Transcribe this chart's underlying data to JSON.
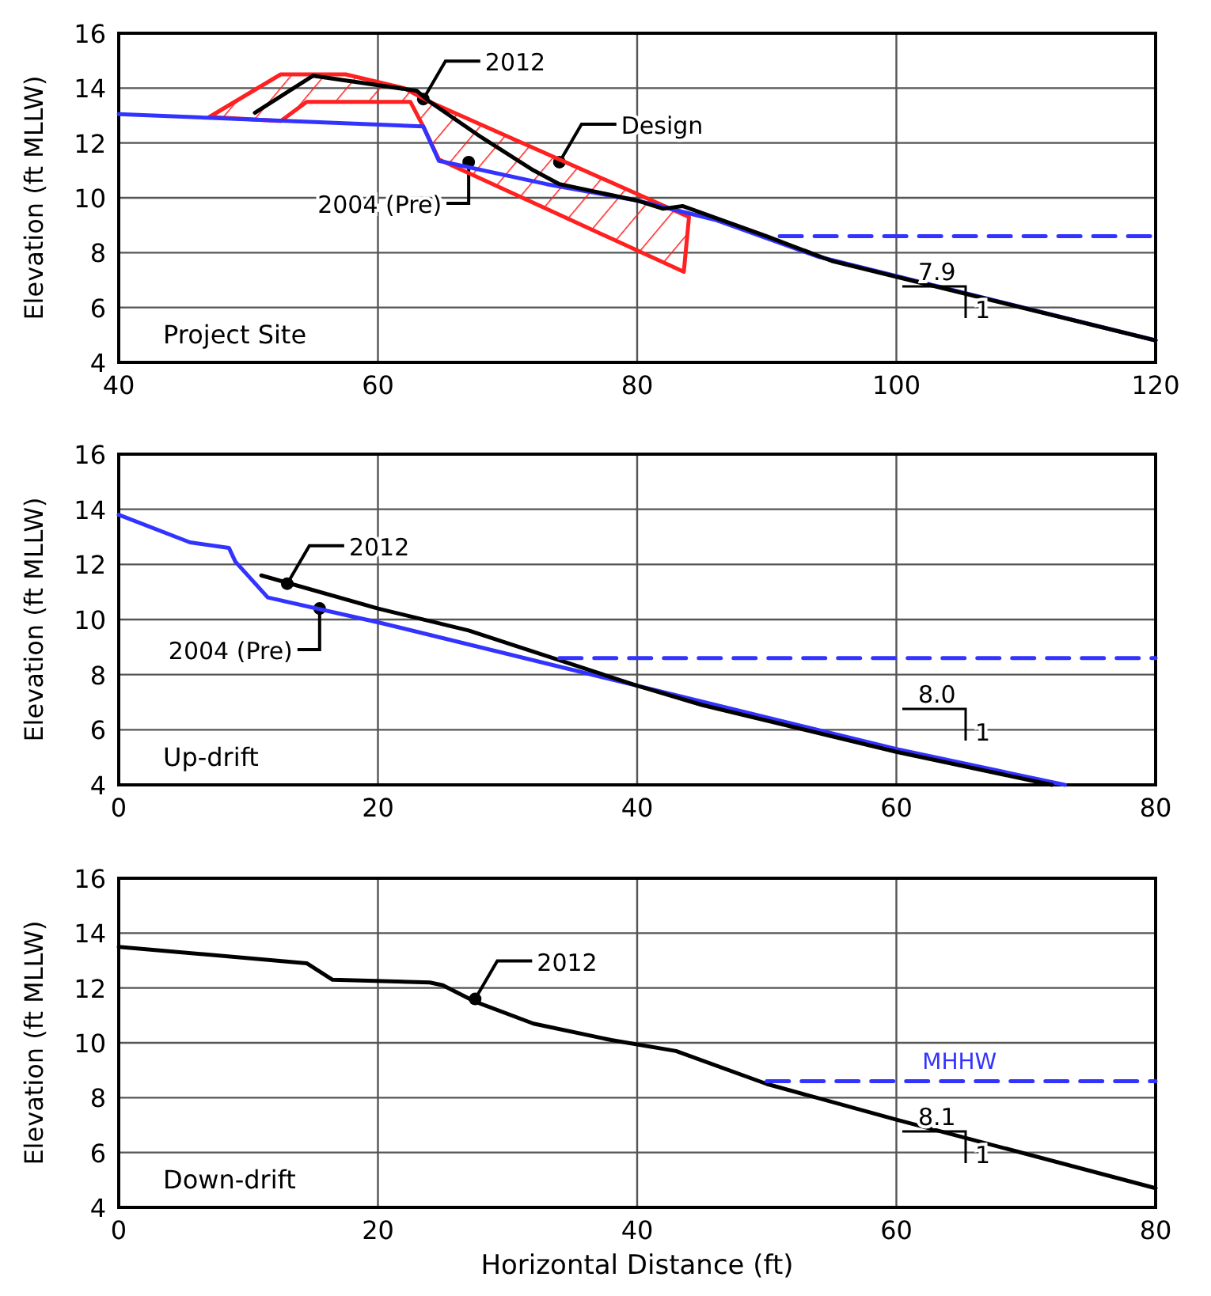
{
  "chart_data": [
    {
      "type": "line",
      "title": "Project Site",
      "ylabel": "Elevation (ft MLLW)",
      "xlim": [
        40,
        120
      ],
      "xticks": [
        40,
        60,
        80,
        100,
        120
      ],
      "ylim": [
        4,
        16
      ],
      "yticks": [
        4,
        6,
        8,
        10,
        12,
        14,
        16
      ],
      "grid": true,
      "series": [
        {
          "color": "#ff2020",
          "type": "area",
          "x": [
            47,
            52.5,
            57.5,
            62,
            64,
            84,
            83.6,
            64.7,
            63.5,
            62.5,
            54.5,
            52.5,
            47
          ],
          "values": [
            12.95,
            14.5,
            14.5,
            14,
            13.5,
            9.3,
            7.3,
            11.4,
            12.6,
            13.5,
            13.5,
            12.8,
            12.95
          ]
        },
        {
          "color": "#3333ff",
          "x": [
            40,
            63.5,
            64.7,
            73,
            80,
            86,
            94,
            120
          ],
          "values": [
            13.05,
            12.6,
            11.35,
            10.5,
            9.9,
            9.2,
            7.85,
            4.8
          ]
        },
        {
          "color": "#000000",
          "x": [
            50.5,
            55,
            63,
            64,
            68,
            72,
            74,
            80,
            82,
            83.5,
            90,
            95,
            120
          ],
          "values": [
            13.1,
            14.45,
            13.9,
            13.5,
            12.2,
            11,
            10.5,
            9.9,
            9.6,
            9.7,
            8.6,
            7.7,
            4.8
          ]
        },
        {
          "color": "#3333ff",
          "line_style": "dashed",
          "x": [
            91,
            120
          ],
          "values": [
            8.6,
            8.6
          ]
        }
      ],
      "annotations": [
        {
          "text": "2012",
          "x": 63.5,
          "y": 13.6
        },
        {
          "text": "2004 (Pre)",
          "x": 67,
          "y": 11.3
        },
        {
          "text": "Design",
          "x": 74,
          "y": 11.3
        },
        "7.9",
        "1"
      ]
    },
    {
      "type": "line",
      "title": "Up-drift",
      "ylabel": "Elevation (ft MLLW)",
      "xlim": [
        0,
        80
      ],
      "xticks": [
        0,
        20,
        40,
        60,
        80
      ],
      "ylim": [
        4,
        16
      ],
      "yticks": [
        4,
        6,
        8,
        10,
        12,
        14,
        16
      ],
      "grid": true,
      "series": [
        {
          "color": "#3333ff",
          "x": [
            0,
            5.5,
            8.5,
            9,
            11.5,
            20,
            40,
            60,
            73
          ],
          "values": [
            13.8,
            12.8,
            12.6,
            12.1,
            10.8,
            9.9,
            7.6,
            5.3,
            4
          ]
        },
        {
          "color": "#000000",
          "x": [
            11,
            20,
            27,
            40,
            45,
            60,
            72
          ],
          "values": [
            11.6,
            10.4,
            9.6,
            7.6,
            6.9,
            5.2,
            4
          ]
        },
        {
          "color": "#3333ff",
          "line_style": "dashed",
          "x": [
            34,
            80
          ],
          "values": [
            8.6,
            8.6
          ]
        }
      ],
      "annotations": [
        {
          "text": "2012",
          "x": 13,
          "y": 11.3
        },
        {
          "text": "2004 (Pre)",
          "x": 15.5,
          "y": 10.4
        },
        "8.0",
        "1"
      ]
    },
    {
      "type": "line",
      "title": "Down-drift",
      "xlabel": "Horizontal Distance (ft)",
      "ylabel": "Elevation (ft MLLW)",
      "xlim": [
        0,
        80
      ],
      "xticks": [
        0,
        20,
        40,
        60,
        80
      ],
      "ylim": [
        4,
        16
      ],
      "yticks": [
        4,
        6,
        8,
        10,
        12,
        14,
        16
      ],
      "grid": true,
      "series": [
        {
          "color": "#000000",
          "x": [
            0,
            14.5,
            16.5,
            24,
            25,
            27.5,
            32,
            38,
            43,
            50,
            60,
            80
          ],
          "values": [
            13.5,
            12.9,
            12.3,
            12.2,
            12.1,
            11.5,
            10.7,
            10.1,
            9.7,
            8.5,
            7.2,
            4.7
          ]
        },
        {
          "name": "MHHW",
          "color": "#3333ff",
          "line_style": "dashed",
          "x": [
            50,
            80
          ],
          "values": [
            8.6,
            8.6
          ]
        }
      ],
      "annotations": [
        {
          "text": "2012",
          "x": 27.5,
          "y": 11.6
        },
        "8.1",
        "1"
      ]
    }
  ]
}
